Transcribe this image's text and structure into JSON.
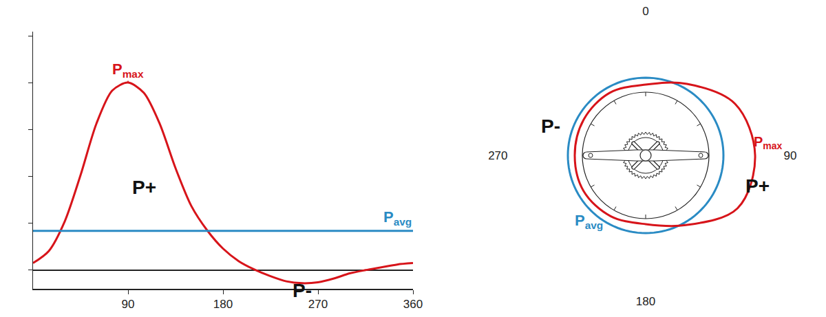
{
  "chart_data": [
    {
      "type": "line",
      "x": [
        0,
        15,
        30,
        45,
        60,
        75,
        90,
        105,
        120,
        135,
        150,
        165,
        180,
        195,
        210,
        225,
        240,
        255,
        270,
        285,
        300,
        315,
        330,
        345,
        360
      ],
      "series": [
        {
          "color": "#d7141a",
          "line_style": "smooth",
          "values": [
            0.15,
            0.41,
            1.04,
            2.03,
            3.13,
            3.84,
            4.01,
            3.79,
            3.13,
            2.18,
            1.37,
            0.85,
            0.46,
            0.19,
            0.01,
            -0.13,
            -0.24,
            -0.28,
            -0.26,
            -0.18,
            -0.07,
            0.0,
            0.06,
            0.12,
            0.15
          ]
        }
      ],
      "reference": {
        "text": "P",
        "subscript": "avg",
        "value": 0.84,
        "color": "#2a8bc4"
      },
      "annotations": [
        {
          "text": "P",
          "subscript": "max"
        },
        {
          "text": "P+"
        },
        {
          "text": "P-"
        }
      ],
      "xlim": [
        0,
        360
      ],
      "xticks": [
        90,
        180,
        270,
        360
      ],
      "ylim": [
        -0.4,
        5.1
      ],
      "yticks": [
        0,
        1,
        2,
        3,
        4,
        5
      ],
      "tick_labels": "x",
      "grid": false
    },
    {
      "type": "polar",
      "theta": [
        0,
        30,
        60,
        90,
        120,
        150,
        180,
        210,
        240,
        270,
        300,
        330,
        360
      ],
      "series": [
        {
          "color": "#d7141a",
          "line_style": "smooth",
          "values": [
            10.3,
            12.0,
            15.0,
            15.9,
            15.4,
            11.7,
            10.0,
            10.2,
            10.4,
            10.3,
            10.4,
            10.5,
            10.3
          ]
        }
      ],
      "reference": {
        "text": "P",
        "subscript": "avg",
        "value": 11.3,
        "color": "#2a8bc4"
      },
      "annotations": [
        {
          "text": "P",
          "subscript": "max"
        },
        {
          "text": "P+"
        },
        {
          "text": "P-"
        }
      ],
      "rlim": [
        0,
        20
      ],
      "thetaticks": [
        0,
        90,
        180,
        270
      ],
      "grid": false
    }
  ]
}
